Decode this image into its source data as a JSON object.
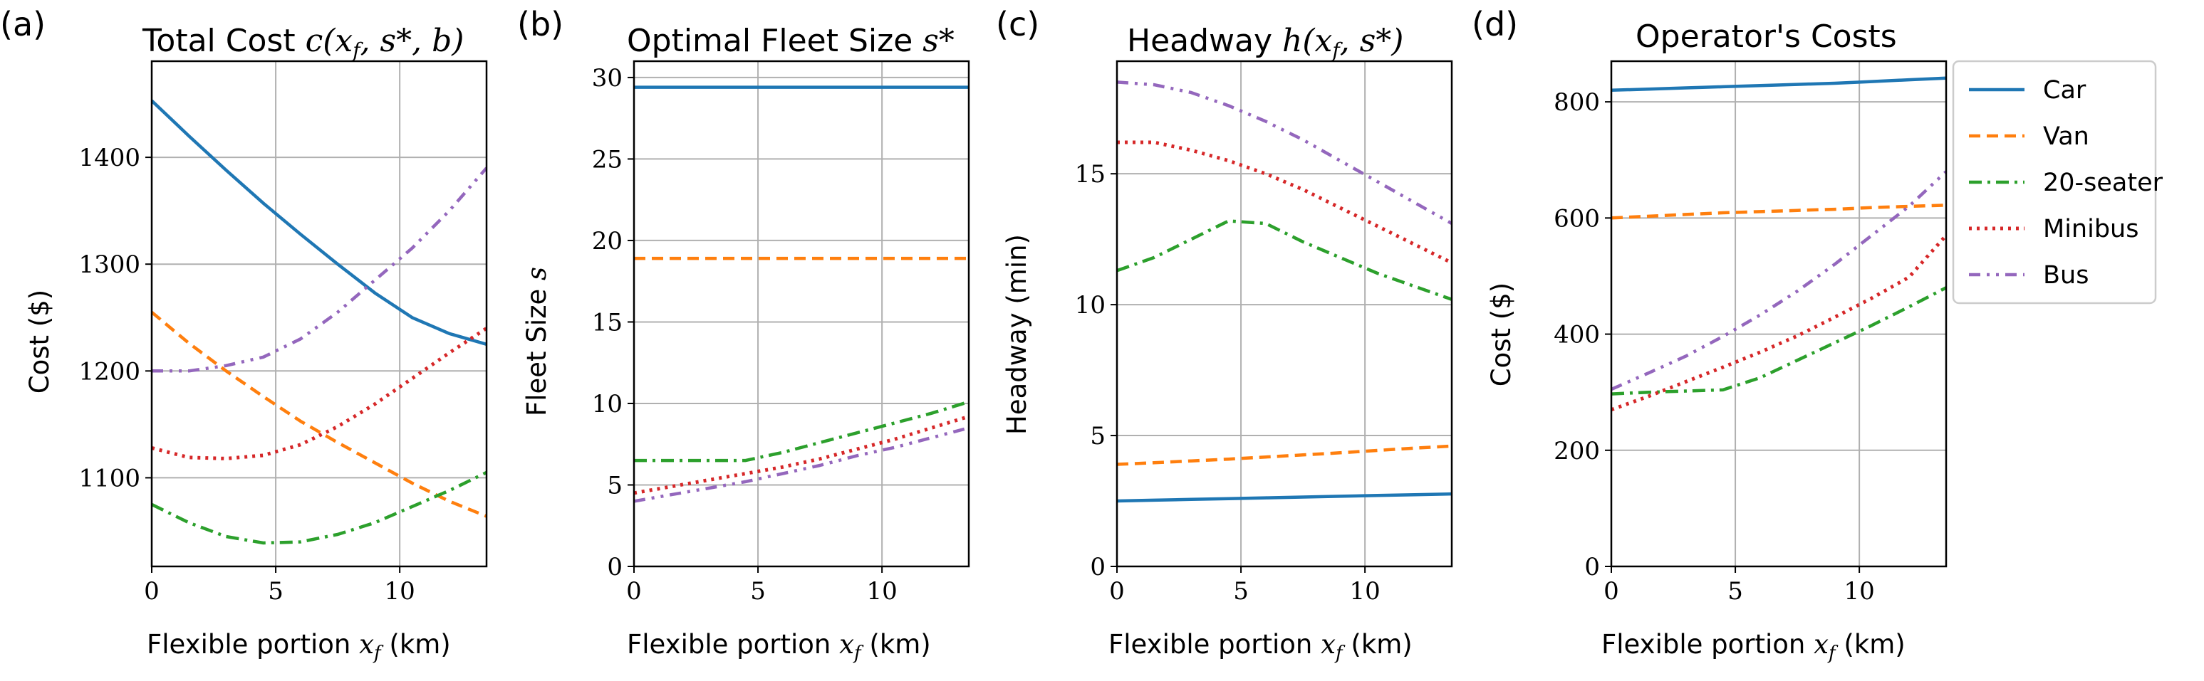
{
  "colors": {
    "Car": "#1f77b4",
    "Van": "#ff7f0e",
    "20-seater": "#2ca02c",
    "Minibus": "#d62728",
    "Bus": "#9467bd"
  },
  "legend": {
    "items": [
      "Car",
      "Van",
      "20-seater",
      "Minibus",
      "Bus"
    ],
    "placement": "right"
  },
  "chart_data": [
    {
      "type": "line",
      "panel": "(a)",
      "title": "Total Cost c(x_f, s*, b)",
      "xlabel": "Flexible portion x_f (km)",
      "ylabel": "Cost ($)",
      "xlim": [
        0,
        13.5
      ],
      "ylim": [
        1017,
        1490
      ],
      "xticks": [
        0,
        5,
        10
      ],
      "yticks": [
        1100,
        1200,
        1300,
        1400
      ],
      "grid": true,
      "x": [
        0,
        1.5,
        3,
        4.5,
        6,
        7.5,
        9,
        10.5,
        12,
        13.5
      ],
      "series": [
        {
          "name": "Car",
          "values": [
            1453,
            1420,
            1388,
            1357,
            1328,
            1300,
            1273,
            1250,
            1235,
            1225
          ]
        },
        {
          "name": "Van",
          "values": [
            1255,
            1226,
            1200,
            1176,
            1153,
            1133,
            1114,
            1095,
            1078,
            1064
          ]
        },
        {
          "name": "20-seater",
          "values": [
            1075,
            1058,
            1045,
            1039,
            1040,
            1047,
            1058,
            1073,
            1088,
            1105
          ]
        },
        {
          "name": "Minibus",
          "values": [
            1128,
            1119,
            1118,
            1121,
            1131,
            1148,
            1169,
            1193,
            1217,
            1240
          ]
        },
        {
          "name": "Bus",
          "values": [
            1200,
            1200,
            1205,
            1213,
            1230,
            1255,
            1285,
            1315,
            1350,
            1390
          ]
        }
      ]
    },
    {
      "type": "line",
      "panel": "(b)",
      "title": "Optimal Fleet Size s*",
      "xlabel": "Flexible portion x_f (km)",
      "ylabel": "Fleet Size s",
      "xlim": [
        0,
        13.5
      ],
      "ylim": [
        0,
        31
      ],
      "xticks": [
        0,
        5,
        10
      ],
      "yticks": [
        0,
        5,
        10,
        15,
        20,
        25,
        30
      ],
      "grid": true,
      "x": [
        0,
        1.5,
        3,
        4.5,
        6,
        7.5,
        9,
        10.5,
        12,
        13.5
      ],
      "series": [
        {
          "name": "Car",
          "values": [
            29.4,
            29.4,
            29.4,
            29.4,
            29.4,
            29.4,
            29.4,
            29.4,
            29.4,
            29.4
          ]
        },
        {
          "name": "Van",
          "values": [
            18.9,
            18.9,
            18.9,
            18.9,
            18.9,
            18.9,
            18.9,
            18.9,
            18.9,
            18.9
          ]
        },
        {
          "name": "20-seater",
          "values": [
            6.5,
            6.5,
            6.5,
            6.5,
            7.0,
            7.6,
            8.2,
            8.8,
            9.4,
            10.1
          ]
        },
        {
          "name": "Minibus",
          "values": [
            4.5,
            4.9,
            5.3,
            5.7,
            6.1,
            6.6,
            7.2,
            7.8,
            8.5,
            9.2
          ]
        },
        {
          "name": "Bus",
          "values": [
            4.0,
            4.4,
            4.8,
            5.2,
            5.7,
            6.2,
            6.8,
            7.3,
            7.9,
            8.5
          ]
        }
      ]
    },
    {
      "type": "line",
      "panel": "(c)",
      "title": "Headway h(x_f, s*)",
      "xlabel": "Flexible portion x_f (km)",
      "ylabel": "Headway (min)",
      "xlim": [
        0,
        13.5
      ],
      "ylim": [
        0,
        19.3
      ],
      "xticks": [
        0,
        5,
        10
      ],
      "yticks": [
        0,
        5,
        10,
        15
      ],
      "grid": true,
      "x": [
        0,
        1.5,
        3,
        4.5,
        6,
        7.5,
        9,
        10.5,
        12,
        13.5
      ],
      "series": [
        {
          "name": "Car",
          "values": [
            2.5,
            2.53,
            2.56,
            2.59,
            2.62,
            2.65,
            2.68,
            2.71,
            2.74,
            2.77
          ]
        },
        {
          "name": "Van",
          "values": [
            3.9,
            3.96,
            4.03,
            4.1,
            4.18,
            4.26,
            4.34,
            4.43,
            4.52,
            4.6
          ]
        },
        {
          "name": "20-seater",
          "values": [
            11.3,
            11.8,
            12.5,
            13.2,
            13.1,
            12.4,
            11.8,
            11.2,
            10.7,
            10.2
          ]
        },
        {
          "name": "Minibus",
          "values": [
            16.2,
            16.2,
            15.9,
            15.5,
            15.0,
            14.4,
            13.7,
            13.0,
            12.3,
            11.6
          ]
        },
        {
          "name": "Bus",
          "values": [
            18.5,
            18.4,
            18.1,
            17.6,
            17.0,
            16.3,
            15.5,
            14.7,
            13.9,
            13.1
          ]
        }
      ]
    },
    {
      "type": "line",
      "panel": "(d)",
      "title": "Operator's Costs",
      "xlabel": "Flexible portion x_f (km)",
      "ylabel": "Cost ($)",
      "xlim": [
        0,
        13.5
      ],
      "ylim": [
        0,
        870
      ],
      "xticks": [
        0,
        5,
        10
      ],
      "yticks": [
        0,
        200,
        400,
        600,
        800
      ],
      "grid": true,
      "x": [
        0,
        1.5,
        3,
        4.5,
        6,
        7.5,
        9,
        10.5,
        12,
        13.5
      ],
      "series": [
        {
          "name": "Car",
          "values": [
            820,
            822,
            824,
            826,
            828,
            830,
            832,
            835,
            838,
            841
          ]
        },
        {
          "name": "Van",
          "values": [
            600,
            603,
            606,
            609,
            611,
            613,
            615,
            618,
            620,
            622
          ]
        },
        {
          "name": "20-seater",
          "values": [
            297,
            300,
            302,
            304,
            325,
            355,
            385,
            415,
            447,
            480
          ]
        },
        {
          "name": "Minibus",
          "values": [
            270,
            293,
            318,
            343,
            369,
            397,
            429,
            462,
            498,
            570
          ]
        },
        {
          "name": "Bus",
          "values": [
            305,
            333,
            362,
            396,
            433,
            474,
            520,
            570,
            620,
            680
          ]
        }
      ]
    }
  ],
  "text": {
    "panel_a": {
      "letter": "(a)",
      "title_text": "Total Cost ",
      "title_math": "c(x",
      "title_sub": "f",
      "title_tail": ", s*, b)",
      "xlabel_text": "Flexible portion ",
      "xlabel_math": "x",
      "xlabel_sub": "f",
      "xlabel_tail": " (km)",
      "ylabel": "Cost ($)"
    },
    "panel_b": {
      "letter": "(b)",
      "title_text": "Optimal Fleet Size ",
      "title_math": "s*",
      "xlabel_text": "Flexible portion ",
      "xlabel_math": "x",
      "xlabel_sub": "f",
      "xlabel_tail": " (km)",
      "ylabel_text": "Fleet Size ",
      "ylabel_math": "s"
    },
    "panel_c": {
      "letter": "(c)",
      "title_text": "Headway ",
      "title_math": "h(x",
      "title_sub": "f",
      "title_tail": ", s*)",
      "xlabel_text": "Flexible portion ",
      "xlabel_math": "x",
      "xlabel_sub": "f",
      "xlabel_tail": " (km)",
      "ylabel": "Headway (min)"
    },
    "panel_d": {
      "letter": "(d)",
      "title_text": "Operator's Costs",
      "xlabel_text": "Flexible portion ",
      "xlabel_math": "x",
      "xlabel_sub": "f",
      "xlabel_tail": " (km)",
      "ylabel": "Cost ($)"
    }
  }
}
